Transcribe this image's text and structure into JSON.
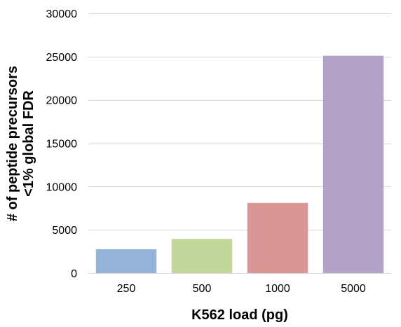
{
  "chart_data": {
    "type": "bar",
    "title": "",
    "xlabel": "K562 load (pg)",
    "ylabel_lines": [
      "# of peptide precursors",
      "<1% global  FDR"
    ],
    "categories": [
      "250",
      "500",
      "1000",
      "5000"
    ],
    "values": [
      2750,
      3950,
      8100,
      25100
    ],
    "ylim": [
      0,
      30000
    ],
    "yticks": [
      0,
      5000,
      10000,
      15000,
      20000,
      25000,
      30000
    ],
    "ytick_labels": [
      "0",
      "5000",
      "10000",
      "15000",
      "20000",
      "25000",
      "30000"
    ],
    "grid": "horizontal",
    "bar_colors": [
      "#95b3d7",
      "#c3d69b",
      "#d99694",
      "#b3a2c7"
    ],
    "grid_color": "#d9d9d9",
    "legend": "none"
  }
}
